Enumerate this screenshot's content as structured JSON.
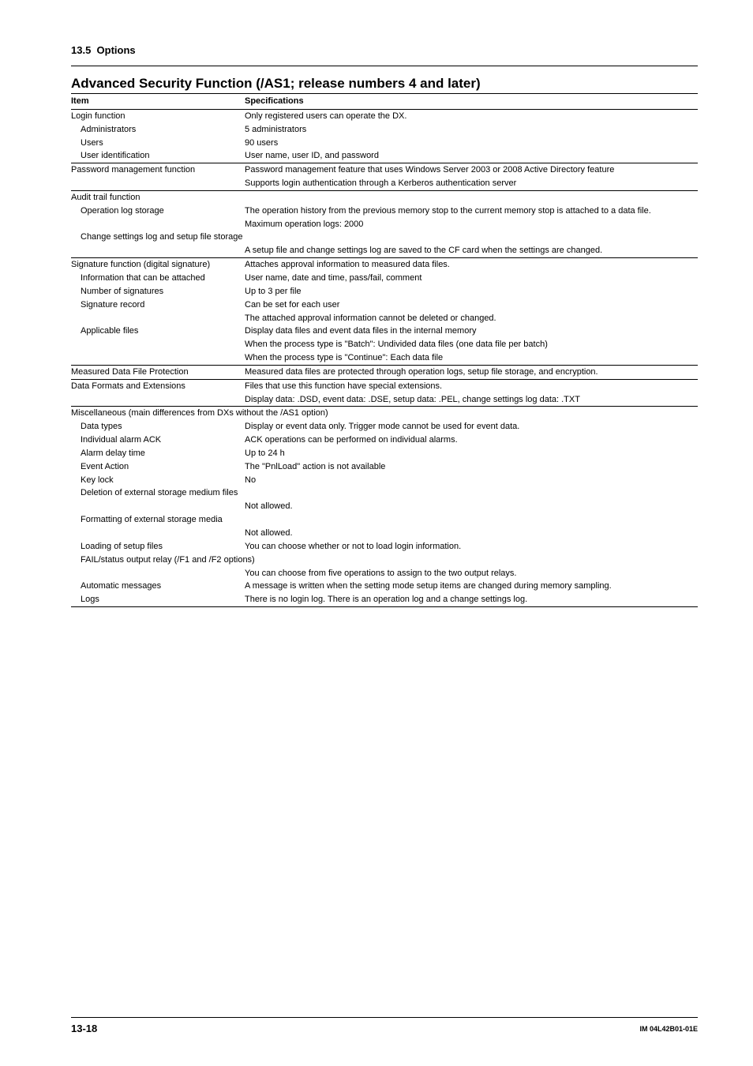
{
  "section_number": "13.5",
  "section_title": "Options",
  "main_title": "Advanced Security Function (/AS1; release numbers 4 and later)",
  "header_item": "Item",
  "header_spec": "Specifications",
  "rows": [
    {
      "item": "Login function",
      "spec": "Only registered users can operate the DX.",
      "ind": 0,
      "rule_top": true
    },
    {
      "item": "Administrators",
      "spec": "5 administrators",
      "ind": 1
    },
    {
      "item": "Users",
      "spec": "90 users",
      "ind": 1
    },
    {
      "item": "User identification",
      "spec": "User name, user ID, and password",
      "ind": 1
    },
    {
      "item": "Password management function",
      "spec": "Password management feature that uses Windows Server 2003 or 2008 Active Directory feature",
      "ind": 0,
      "rule_top": true
    },
    {
      "item": "",
      "spec": "Supports login authentication through a Kerberos authentication server",
      "ind": 0
    },
    {
      "item": "Audit trail function",
      "spec": "",
      "ind": 0,
      "rule_top": true
    },
    {
      "item": "Operation log storage",
      "spec": "The operation history from the previous memory stop to the current memory stop is attached to a data file.",
      "ind": 1
    },
    {
      "item": "",
      "spec": "Maximum operation logs: 2000",
      "ind": 1
    },
    {
      "item": "Change settings log and setup file storage",
      "spec": "",
      "ind": 1,
      "span": true
    },
    {
      "item": "",
      "spec": "A setup file and change settings log are saved to the CF card when the settings are changed.",
      "ind": 1
    },
    {
      "item": "Signature function (digital signature)",
      "spec": "Attaches approval information to measured data files.",
      "ind": 0,
      "rule_top": true,
      "nowrap_item": true
    },
    {
      "item": "Information that can be attached",
      "spec": "User name, date and time, pass/fail, comment",
      "ind": 1,
      "nowrap_item": true
    },
    {
      "item": "Number of signatures",
      "spec": "Up to 3 per file",
      "ind": 1
    },
    {
      "item": "Signature record",
      "spec": "Can be set for each user",
      "ind": 1
    },
    {
      "item": "",
      "spec": "The attached approval information cannot be deleted or changed.",
      "ind": 1
    },
    {
      "item": "Applicable files",
      "spec": "Display data files and event data files in the internal memory",
      "ind": 1
    },
    {
      "item": "",
      "spec": "When the process type is \"Batch\": Undivided data files (one data file per batch)",
      "ind": 1
    },
    {
      "item": "",
      "spec": "When the process type is \"Continue\": Each data file",
      "ind": 1
    },
    {
      "item": "Measured Data File Protection",
      "spec": "Measured data files are protected through operation logs, setup file storage, and encryption.",
      "ind": 0,
      "rule_top": true
    },
    {
      "item": "Data Formats and Extensions",
      "spec": "Files that use this function have special extensions.",
      "ind": 0,
      "rule_top": true
    },
    {
      "item": "",
      "spec": "Display data: .DSD, event data: .DSE, setup data: .PEL, change settings log data: .TXT",
      "ind": 0
    },
    {
      "item": "Miscellaneous (main differences from DXs without the /AS1 option)",
      "spec": "",
      "ind": 0,
      "rule_top": true,
      "span": true
    },
    {
      "item": "Data types",
      "spec": "Display or event data only. Trigger mode cannot be used for event data.",
      "ind": 1
    },
    {
      "item": "Individual alarm ACK",
      "spec": "ACK operations can be performed on individual alarms.",
      "ind": 1
    },
    {
      "item": "Alarm delay time",
      "spec": "Up to 24 h",
      "ind": 1
    },
    {
      "item": "Event Action",
      "spec": "The \"PnlLoad\" action is not available",
      "ind": 1
    },
    {
      "item": "Key lock",
      "spec": "No",
      "ind": 1
    },
    {
      "item": "Deletion of external storage medium files",
      "spec": "",
      "ind": 1,
      "span": true
    },
    {
      "item": "",
      "spec": "Not allowed.",
      "ind": 1
    },
    {
      "item": "Formatting of external storage media",
      "spec": "",
      "ind": 1,
      "span": true
    },
    {
      "item": "",
      "spec": "Not allowed.",
      "ind": 1
    },
    {
      "item": "Loading of setup files",
      "spec": "You can choose whether or not to load login information.",
      "ind": 1
    },
    {
      "item": "FAIL/status output relay (/F1 and /F2 options)",
      "spec": "",
      "ind": 1,
      "span": true
    },
    {
      "item": "",
      "spec": "You can choose from five operations to assign to the two output relays.",
      "ind": 1
    },
    {
      "item": "Automatic messages",
      "spec": "A message is written when the setting mode setup items are changed during memory sampling.",
      "ind": 1
    },
    {
      "item": "Logs",
      "spec": "There is no login log. There is an operation log and a change settings log.",
      "ind": 1,
      "rule_bottom": true
    }
  ],
  "footer": {
    "page": "13-18",
    "doc_id": "IM 04L42B01-01E"
  }
}
